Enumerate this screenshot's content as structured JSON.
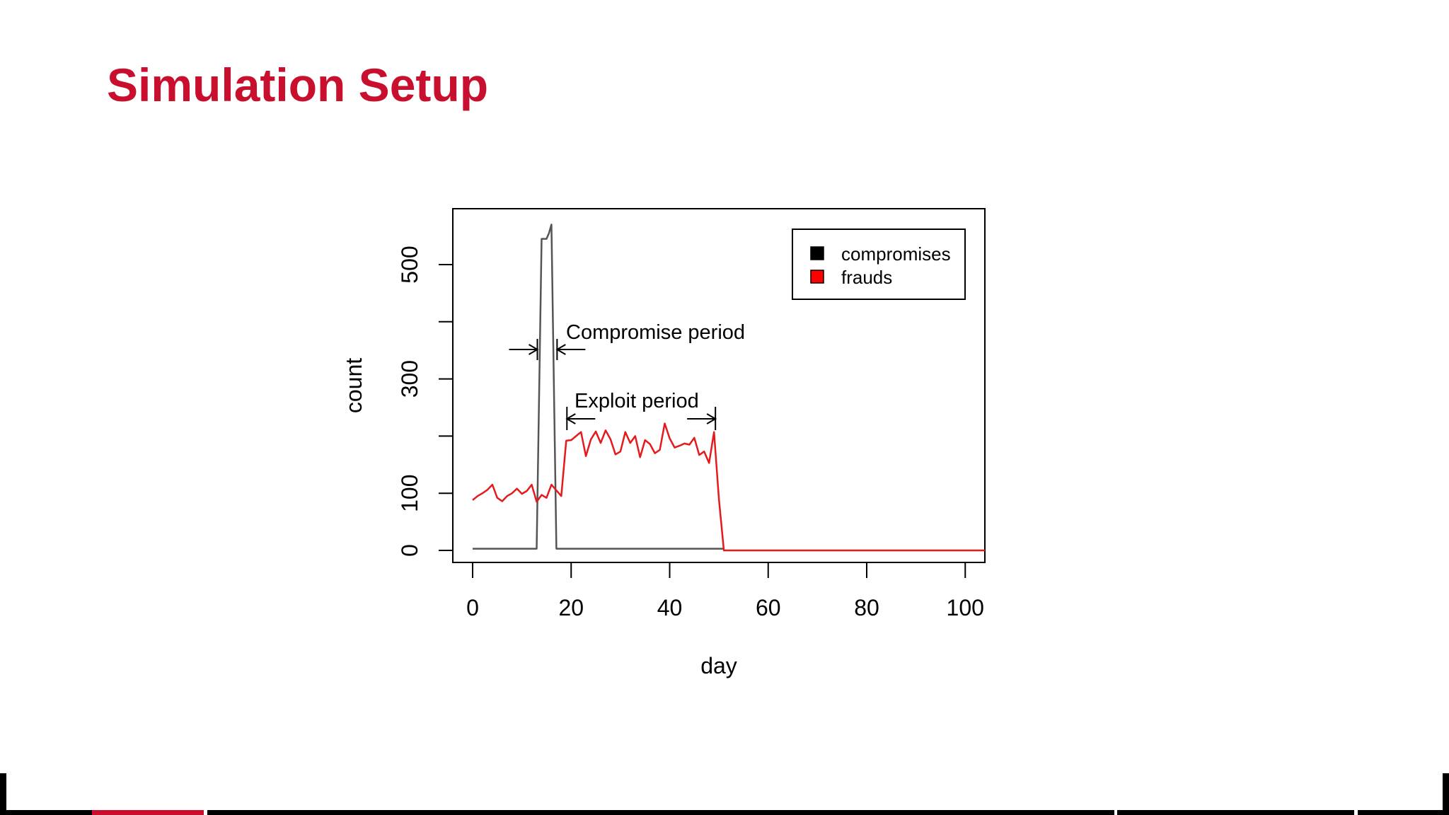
{
  "slide": {
    "title": "Simulation Setup"
  },
  "colors": {
    "title": "#c8102e",
    "compromises": "#555555",
    "frauds": "#e41a1c",
    "legend_compromises_swatch": "#000000",
    "legend_frauds_swatch": "#ff0000"
  },
  "chart_data": {
    "type": "line",
    "title": "",
    "xlabel": "day",
    "ylabel": "count",
    "xlim": [
      0,
      104
    ],
    "ylim": [
      0,
      580
    ],
    "xticks": [
      0,
      20,
      40,
      60,
      80,
      100
    ],
    "yticks": [
      0,
      100,
      200,
      300,
      400,
      500
    ],
    "ytick_labels": [
      "0",
      "100",
      "",
      "300",
      "",
      "500"
    ],
    "grid": false,
    "legend_position": "top-right",
    "series": [
      {
        "name": "compromises",
        "x": [
          0,
          13,
          14,
          15,
          15.5,
          16,
          17,
          18,
          50,
          51
        ],
        "y": [
          3,
          3,
          545,
          545,
          555,
          570,
          3,
          3,
          3,
          3
        ]
      },
      {
        "name": "frauds",
        "x": [
          0,
          1,
          2,
          3,
          4,
          5,
          6,
          7,
          8,
          9,
          10,
          11,
          12,
          13,
          14,
          15,
          16,
          17,
          18,
          19,
          20,
          21,
          22,
          23,
          24,
          25,
          26,
          27,
          28,
          29,
          30,
          31,
          32,
          33,
          34,
          35,
          36,
          37,
          38,
          39,
          40,
          41,
          42,
          43,
          44,
          45,
          46,
          47,
          48,
          49,
          50,
          51,
          60,
          70,
          80,
          90,
          100,
          104
        ],
        "y": [
          88,
          95,
          100,
          106,
          115,
          92,
          86,
          95,
          100,
          108,
          99,
          104,
          115,
          85,
          97,
          92,
          115,
          105,
          95,
          192,
          193,
          200,
          207,
          165,
          194,
          208,
          188,
          210,
          194,
          168,
          173,
          207,
          188,
          200,
          163,
          193,
          186,
          170,
          176,
          222,
          196,
          180,
          183,
          187,
          185,
          197,
          167,
          173,
          153,
          207,
          90,
          0,
          0,
          0,
          0,
          0,
          0,
          0
        ]
      }
    ],
    "annotations": [
      {
        "text": "Compromise period",
        "range": [
          13,
          17
        ]
      },
      {
        "text": "Exploit period",
        "range": [
          19,
          49
        ]
      }
    ]
  }
}
